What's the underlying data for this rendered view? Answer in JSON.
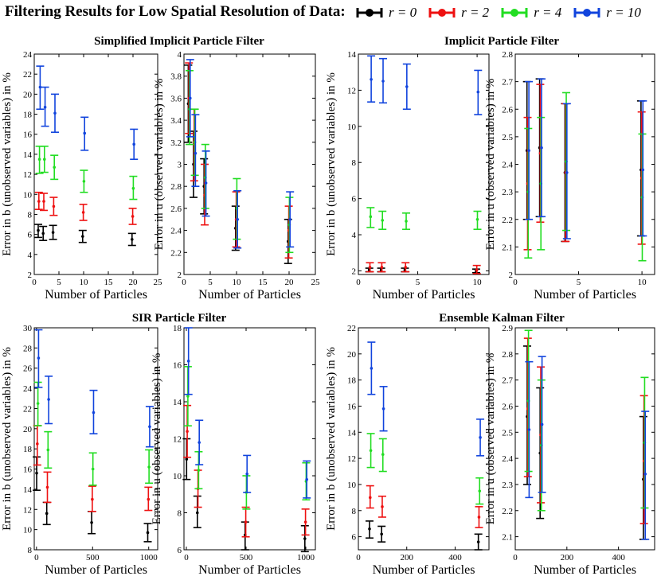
{
  "figure": {
    "title": "Filtering Results for Low Spatial Resolution of Data:",
    "legend": [
      {
        "label": "r = 0",
        "color": "#000000"
      },
      {
        "label": "r = 2",
        "color": "#ee1111"
      },
      {
        "label": "r = 4",
        "color": "#22dd22"
      },
      {
        "label": "r = 10",
        "color": "#1144dd"
      }
    ],
    "panel_titles": [
      "Simplified Implicit Particle Filter",
      "Implicit Particle Filter",
      "SIR Particle Filter",
      "Ensemble Kalman Filter"
    ]
  },
  "chart_data": [
    {
      "type": "errorbar",
      "panel": "Simplified Implicit Particle Filter",
      "variable": "b",
      "xlabel": "Number of Particles",
      "ylabel": "Error in b (unobserved variables) in %",
      "xlim": [
        0,
        25
      ],
      "ylim": [
        2,
        24
      ],
      "xticks": [
        0,
        5,
        10,
        15,
        20,
        25
      ],
      "yticks": [
        2,
        4,
        6,
        8,
        10,
        12,
        14,
        16,
        18,
        20,
        22,
        24
      ],
      "x": [
        1,
        2,
        4,
        10,
        20
      ],
      "series": [
        {
          "name": "r = 0",
          "color": "#000000",
          "y": [
            6.4,
            6.1,
            6.2,
            5.8,
            5.5
          ],
          "lo": [
            5.7,
            5.4,
            5.5,
            5.2,
            4.9
          ],
          "hi": [
            7.0,
            6.8,
            6.9,
            6.4,
            6.1
          ]
        },
        {
          "name": "r = 2",
          "color": "#ee1111",
          "y": [
            9.3,
            9.3,
            8.8,
            8.2,
            7.8
          ],
          "lo": [
            8.5,
            8.4,
            7.9,
            7.4,
            7.0
          ],
          "hi": [
            10.2,
            10.1,
            9.7,
            9.0,
            8.6
          ]
        },
        {
          "name": "r = 4",
          "color": "#22dd22",
          "y": [
            13.5,
            13.5,
            12.7,
            11.3,
            10.6
          ],
          "lo": [
            12.1,
            12.2,
            11.5,
            10.2,
            9.5
          ],
          "hi": [
            14.8,
            14.8,
            13.9,
            12.4,
            11.8
          ]
        },
        {
          "name": "r = 10",
          "color": "#1144dd",
          "y": [
            20.7,
            18.7,
            18.1,
            16.1,
            15.0
          ],
          "lo": [
            18.5,
            16.8,
            16.2,
            14.4,
            13.5
          ],
          "hi": [
            22.8,
            20.7,
            20.0,
            17.7,
            16.5
          ]
        }
      ]
    },
    {
      "type": "errorbar",
      "panel": "Simplified Implicit Particle Filter",
      "variable": "u",
      "xlabel": "Number of Particles",
      "ylabel": "Error in u (observed variables) in %",
      "xlim": [
        0,
        25
      ],
      "ylim": [
        2,
        4
      ],
      "xticks": [
        0,
        5,
        10,
        15,
        20,
        25
      ],
      "yticks": [
        2,
        2.2,
        2.4,
        2.6,
        2.8,
        3,
        3.2,
        3.4,
        3.6,
        3.8,
        4
      ],
      "x": [
        1,
        2,
        4,
        10,
        20
      ],
      "series": [
        {
          "name": "r = 0",
          "color": "#000000",
          "y": [
            3.55,
            3.0,
            2.8,
            2.42,
            2.3
          ],
          "lo": [
            3.2,
            2.7,
            2.55,
            2.22,
            2.1
          ],
          "hi": [
            3.9,
            3.3,
            3.05,
            2.62,
            2.5
          ]
        },
        {
          "name": "r = 2",
          "color": "#ee1111",
          "y": [
            3.6,
            3.2,
            2.72,
            2.5,
            2.4
          ],
          "lo": [
            3.28,
            2.85,
            2.45,
            2.25,
            2.15
          ],
          "hi": [
            3.92,
            3.5,
            3.0,
            2.75,
            2.62
          ]
        },
        {
          "name": "r = 4",
          "color": "#22dd22",
          "y": [
            3.5,
            3.2,
            2.88,
            2.6,
            2.45
          ],
          "lo": [
            3.18,
            2.9,
            2.6,
            2.32,
            2.2
          ],
          "hi": [
            3.85,
            3.5,
            3.18,
            2.87,
            2.7
          ]
        },
        {
          "name": "r = 10",
          "color": "#1144dd",
          "y": [
            3.6,
            3.1,
            2.83,
            2.5,
            2.5
          ],
          "lo": [
            3.25,
            2.8,
            2.53,
            2.24,
            2.25
          ],
          "hi": [
            3.95,
            3.45,
            3.12,
            2.76,
            2.75
          ]
        }
      ]
    },
    {
      "type": "errorbar",
      "panel": "Implicit Particle Filter",
      "variable": "b",
      "xlabel": "Number of Particles",
      "ylabel": "Error in b (unobserved variables) in %",
      "xlim": [
        0,
        11
      ],
      "ylim": [
        1.8,
        14
      ],
      "xticks": [
        0,
        5,
        10
      ],
      "yticks": [
        2,
        4,
        6,
        8,
        10,
        12,
        14
      ],
      "x": [
        1,
        2,
        4,
        10
      ],
      "series": [
        {
          "name": "r = 0",
          "color": "#000000",
          "y": [
            2.05,
            2.05,
            2.05,
            2.0
          ],
          "lo": [
            1.95,
            1.95,
            1.95,
            1.9
          ],
          "hi": [
            2.15,
            2.15,
            2.15,
            2.1
          ]
        },
        {
          "name": "r = 2",
          "color": "#ee1111",
          "y": [
            2.2,
            2.2,
            2.2,
            2.05
          ],
          "lo": [
            1.95,
            1.95,
            1.95,
            1.85
          ],
          "hi": [
            2.45,
            2.45,
            2.45,
            2.3
          ]
        },
        {
          "name": "r = 4",
          "color": "#22dd22",
          "y": [
            5.0,
            4.8,
            4.75,
            4.85
          ],
          "lo": [
            4.4,
            4.3,
            4.3,
            4.3
          ],
          "hi": [
            5.5,
            5.3,
            5.2,
            5.3
          ]
        },
        {
          "name": "r = 10",
          "color": "#1144dd",
          "y": [
            12.6,
            12.5,
            12.2,
            11.9
          ],
          "lo": [
            11.35,
            11.3,
            10.95,
            10.65
          ],
          "hi": [
            13.9,
            13.75,
            13.45,
            13.1
          ]
        }
      ]
    },
    {
      "type": "errorbar",
      "panel": "Implicit Particle Filter",
      "variable": "u",
      "xlabel": "Number of Particles",
      "ylabel": "Error in u (observed variables) in %",
      "xlim": [
        0,
        11
      ],
      "ylim": [
        2,
        2.8
      ],
      "xticks": [
        0,
        5,
        10
      ],
      "yticks": [
        2,
        2.1,
        2.2,
        2.3,
        2.4,
        2.5,
        2.6,
        2.7,
        2.8
      ],
      "x": [
        1,
        2,
        4,
        10
      ],
      "series": [
        {
          "name": "r = 0",
          "color": "#000000",
          "y": [
            2.45,
            2.46,
            2.37,
            2.38
          ],
          "lo": [
            2.2,
            2.21,
            2.12,
            2.14
          ],
          "hi": [
            2.7,
            2.71,
            2.62,
            2.63
          ]
        },
        {
          "name": "r = 2",
          "color": "#ee1111",
          "y": [
            2.33,
            2.44,
            2.37,
            2.35
          ],
          "lo": [
            2.09,
            2.19,
            2.12,
            2.11
          ],
          "hi": [
            2.57,
            2.69,
            2.62,
            2.59
          ]
        },
        {
          "name": "r = 4",
          "color": "#22dd22",
          "y": [
            2.3,
            2.33,
            2.41,
            2.28
          ],
          "lo": [
            2.06,
            2.09,
            2.16,
            2.05
          ],
          "hi": [
            2.53,
            2.57,
            2.66,
            2.51
          ]
        },
        {
          "name": "r = 10",
          "color": "#1144dd",
          "y": [
            2.45,
            2.46,
            2.37,
            2.38
          ],
          "lo": [
            2.2,
            2.21,
            2.13,
            2.14
          ],
          "hi": [
            2.7,
            2.71,
            2.62,
            2.63
          ]
        }
      ]
    },
    {
      "type": "errorbar",
      "panel": "SIR Particle Filter",
      "variable": "b",
      "xlabel": "Number of Particles",
      "ylabel": "Error in b (unobserved variables) in %",
      "xlim": [
        -20,
        1080
      ],
      "ylim": [
        8,
        30
      ],
      "xticks": [
        0,
        500,
        1000
      ],
      "yticks": [
        8,
        10,
        12,
        14,
        16,
        18,
        20,
        22,
        24,
        26,
        28,
        30
      ],
      "x": [
        10,
        100,
        500,
        1000
      ],
      "series": [
        {
          "name": "r = 0",
          "color": "#000000",
          "y": [
            15.6,
            11.6,
            10.7,
            9.7
          ],
          "lo": [
            13.9,
            10.5,
            9.6,
            8.8
          ],
          "hi": [
            17.2,
            12.7,
            11.8,
            10.6
          ]
        },
        {
          "name": "r = 2",
          "color": "#ee1111",
          "y": [
            18.5,
            14.2,
            13.0,
            13.0
          ],
          "lo": [
            16.4,
            12.7,
            11.8,
            11.9
          ],
          "hi": [
            20.3,
            15.7,
            14.3,
            14.2
          ]
        },
        {
          "name": "r = 4",
          "color": "#22dd22",
          "y": [
            22.5,
            17.9,
            16.0,
            16.2
          ],
          "lo": [
            20.3,
            16.1,
            14.4,
            14.6
          ],
          "hi": [
            24.6,
            19.7,
            17.6,
            17.9
          ]
        },
        {
          "name": "r = 10",
          "color": "#1144dd",
          "y": [
            27.0,
            22.9,
            21.6,
            20.2
          ],
          "lo": [
            24.1,
            20.5,
            19.5,
            18.2
          ],
          "hi": [
            29.8,
            25.2,
            23.8,
            22.2
          ]
        }
      ]
    },
    {
      "type": "errorbar",
      "panel": "SIR Particle Filter",
      "variable": "u",
      "xlabel": "Number of Particles",
      "ylabel": "Error in u (observed variables) in %",
      "xlim": [
        -20,
        1080
      ],
      "ylim": [
        6,
        18
      ],
      "xticks": [
        0,
        500,
        1000
      ],
      "yticks": [
        6,
        8,
        10,
        12,
        14,
        16,
        18
      ],
      "x": [
        10,
        100,
        500,
        1000
      ],
      "series": [
        {
          "name": "r = 0",
          "color": "#000000",
          "y": [
            10.9,
            8.0,
            6.8,
            6.6
          ],
          "lo": [
            9.8,
            7.2,
            6.0,
            5.9
          ],
          "hi": [
            12.0,
            8.9,
            7.5,
            7.3
          ]
        },
        {
          "name": "r = 2",
          "color": "#ee1111",
          "y": [
            12.4,
            9.3,
            7.5,
            7.5
          ],
          "lo": [
            11.0,
            8.3,
            6.7,
            6.8
          ],
          "hi": [
            13.8,
            10.3,
            8.3,
            8.2
          ]
        },
        {
          "name": "r = 4",
          "color": "#22dd22",
          "y": [
            14.3,
            10.3,
            9.1,
            9.7
          ],
          "lo": [
            12.7,
            9.3,
            8.2,
            8.7
          ],
          "hi": [
            15.9,
            11.3,
            10.0,
            10.7
          ]
        },
        {
          "name": "r = 10",
          "color": "#1144dd",
          "y": [
            16.2,
            11.8,
            10.1,
            9.8
          ],
          "lo": [
            14.4,
            10.6,
            9.1,
            8.8
          ],
          "hi": [
            18.0,
            13.0,
            11.1,
            10.8
          ]
        }
      ]
    },
    {
      "type": "errorbar",
      "panel": "Ensemble Kalman Filter",
      "variable": "b",
      "xlabel": "Number of Particles",
      "ylabel": "Error in b (unobserved variables) in %",
      "xlim": [
        0,
        540
      ],
      "ylim": [
        5,
        22
      ],
      "xticks": [
        0,
        200,
        400
      ],
      "yticks": [
        6,
        8,
        10,
        12,
        14,
        16,
        18,
        20,
        22
      ],
      "x": [
        50,
        100,
        500
      ],
      "series": [
        {
          "name": "r = 0",
          "color": "#000000",
          "y": [
            6.6,
            6.2,
            5.6
          ],
          "lo": [
            5.9,
            5.6,
            5.0
          ],
          "hi": [
            7.2,
            6.8,
            6.2
          ]
        },
        {
          "name": "r = 2",
          "color": "#ee1111",
          "y": [
            9.0,
            8.3,
            7.5
          ],
          "lo": [
            8.2,
            7.5,
            6.7
          ],
          "hi": [
            9.9,
            9.1,
            8.3
          ]
        },
        {
          "name": "r = 4",
          "color": "#22dd22",
          "y": [
            12.6,
            12.3,
            9.5
          ],
          "lo": [
            11.3,
            11.0,
            8.5
          ],
          "hi": [
            13.9,
            13.5,
            10.5
          ]
        },
        {
          "name": "r = 10",
          "color": "#1144dd",
          "y": [
            18.9,
            15.8,
            13.6
          ],
          "lo": [
            16.9,
            14.1,
            12.2
          ],
          "hi": [
            20.9,
            17.5,
            15.0
          ]
        }
      ]
    },
    {
      "type": "errorbar",
      "panel": "Ensemble Kalman Filter",
      "variable": "u",
      "xlabel": "Number of Particles",
      "ylabel": "Error in u (observed variables) in %",
      "xlim": [
        0,
        540
      ],
      "ylim": [
        2.05,
        2.9
      ],
      "xticks": [
        0,
        200,
        400
      ],
      "yticks": [
        2.1,
        2.2,
        2.3,
        2.4,
        2.5,
        2.6,
        2.7,
        2.8,
        2.9
      ],
      "x": [
        50,
        100,
        500
      ],
      "series": [
        {
          "name": "r = 0",
          "color": "#000000",
          "y": [
            2.56,
            2.42,
            2.32
          ],
          "lo": [
            2.3,
            2.17,
            2.09
          ],
          "hi": [
            2.83,
            2.67,
            2.56
          ]
        },
        {
          "name": "r = 2",
          "color": "#ee1111",
          "y": [
            2.59,
            2.49,
            2.39
          ],
          "lo": [
            2.33,
            2.23,
            2.15
          ],
          "hi": [
            2.86,
            2.75,
            2.64
          ]
        },
        {
          "name": "r = 4",
          "color": "#22dd22",
          "y": [
            2.62,
            2.45,
            2.46
          ],
          "lo": [
            2.35,
            2.2,
            2.21
          ],
          "hi": [
            2.89,
            2.7,
            2.71
          ]
        },
        {
          "name": "r = 10",
          "color": "#1144dd",
          "y": [
            2.51,
            2.53,
            2.34
          ],
          "lo": [
            2.25,
            2.27,
            2.09
          ],
          "hi": [
            2.77,
            2.79,
            2.58
          ]
        }
      ]
    }
  ]
}
